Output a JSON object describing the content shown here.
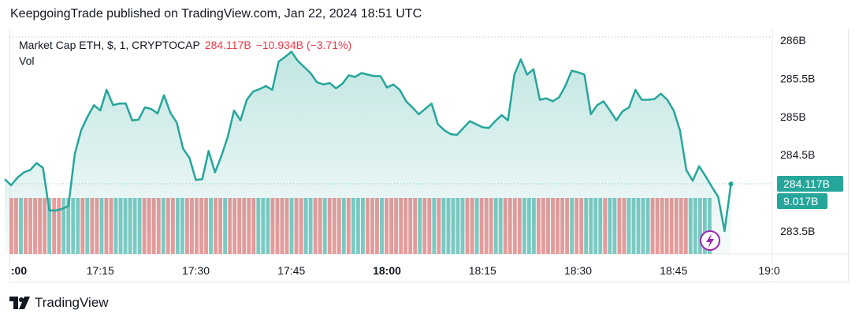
{
  "header": {
    "published_text": "KeepgoingTrade published on TradingView.com, Jan 22, 2024 18:51 UTC"
  },
  "legend": {
    "symbol": "Market Cap ETH, $, 1, CRYPTOCAP",
    "value": "284.117B",
    "change": "−10.934B (−3.71%)",
    "vol_label": "Vol"
  },
  "price_label": "284.117B",
  "volume_label": "9.017B",
  "footer": {
    "brand": "TradingView"
  },
  "colors": {
    "line": "#26a69a",
    "up_vol": "#80cbc4",
    "down_vol": "#ef9a9a",
    "price_tag": "#26a69a",
    "down_text": "#f23645"
  },
  "chart_data": {
    "type": "area",
    "title": "Market Cap ETH, $, 1, CRYPTOCAP",
    "x_ticks": [
      ":00",
      "17:15",
      "17:30",
      "17:45",
      "18:00",
      "18:15",
      "18:30",
      "18:45",
      "19:0"
    ],
    "y_ticks": [
      "286B",
      "285.5B",
      "285B",
      "284.5B",
      "283.5B"
    ],
    "ylim": [
      283.5,
      286.0
    ],
    "x_range": [
      "17:00",
      "19:00"
    ],
    "series": [
      {
        "values": [
          [
            "17:00",
            284.18
          ],
          [
            "17:01",
            284.1
          ],
          [
            "17:02",
            284.2
          ],
          [
            "17:03",
            284.27
          ],
          [
            "17:04",
            284.3
          ],
          [
            "17:05",
            284.39
          ],
          [
            "17:06",
            284.33
          ],
          [
            "17:07",
            283.77
          ],
          [
            "17:08",
            283.77
          ],
          [
            "17:09",
            283.79
          ],
          [
            "17:10",
            283.83
          ],
          [
            "17:11",
            284.51
          ],
          [
            "17:12",
            284.82
          ],
          [
            "17:13",
            285.0
          ],
          [
            "17:14",
            285.15
          ],
          [
            "17:15",
            285.08
          ],
          [
            "17:16",
            285.35
          ],
          [
            "17:17",
            285.15
          ],
          [
            "17:18",
            285.17
          ],
          [
            "17:19",
            285.17
          ],
          [
            "17:20",
            284.95
          ],
          [
            "17:21",
            284.96
          ],
          [
            "17:22",
            285.12
          ],
          [
            "17:23",
            285.1
          ],
          [
            "17:24",
            285.04
          ],
          [
            "17:25",
            285.28
          ],
          [
            "17:26",
            285.05
          ],
          [
            "17:27",
            284.92
          ],
          [
            "17:28",
            284.58
          ],
          [
            "17:29",
            284.46
          ],
          [
            "17:30",
            284.17
          ],
          [
            "17:31",
            284.18
          ],
          [
            "17:32",
            284.55
          ],
          [
            "17:33",
            284.27
          ],
          [
            "17:34",
            284.48
          ],
          [
            "17:35",
            284.73
          ],
          [
            "17:36",
            285.08
          ],
          [
            "17:37",
            284.95
          ],
          [
            "17:38",
            285.22
          ],
          [
            "17:39",
            285.33
          ],
          [
            "17:40",
            285.36
          ],
          [
            "17:41",
            285.4
          ],
          [
            "17:42",
            285.35
          ],
          [
            "17:43",
            285.72
          ],
          [
            "17:44",
            285.78
          ],
          [
            "17:45",
            285.85
          ],
          [
            "17:46",
            285.73
          ],
          [
            "17:47",
            285.65
          ],
          [
            "17:48",
            285.57
          ],
          [
            "17:49",
            285.45
          ],
          [
            "17:50",
            285.42
          ],
          [
            "17:51",
            285.44
          ],
          [
            "17:52",
            285.37
          ],
          [
            "17:53",
            285.43
          ],
          [
            "17:54",
            285.54
          ],
          [
            "17:55",
            285.52
          ],
          [
            "17:56",
            285.57
          ],
          [
            "17:57",
            285.55
          ],
          [
            "17:58",
            285.53
          ],
          [
            "17:59",
            285.53
          ],
          [
            "18:00",
            285.38
          ],
          [
            "18:01",
            285.42
          ],
          [
            "18:02",
            285.35
          ],
          [
            "18:03",
            285.2
          ],
          [
            "18:04",
            285.12
          ],
          [
            "18:05",
            285.03
          ],
          [
            "18:06",
            285.1
          ],
          [
            "18:07",
            285.17
          ],
          [
            "18:08",
            284.9
          ],
          [
            "18:09",
            284.82
          ],
          [
            "18:10",
            284.77
          ],
          [
            "18:11",
            284.76
          ],
          [
            "18:12",
            284.85
          ],
          [
            "18:13",
            284.94
          ],
          [
            "18:14",
            284.9
          ],
          [
            "18:15",
            284.86
          ],
          [
            "18:16",
            284.85
          ],
          [
            "18:17",
            284.94
          ],
          [
            "18:18",
            285.02
          ],
          [
            "18:19",
            284.95
          ],
          [
            "18:20",
            285.55
          ],
          [
            "18:21",
            285.75
          ],
          [
            "18:22",
            285.55
          ],
          [
            "18:23",
            285.62
          ],
          [
            "18:24",
            285.22
          ],
          [
            "18:25",
            285.24
          ],
          [
            "18:26",
            285.2
          ],
          [
            "18:27",
            285.25
          ],
          [
            "18:28",
            285.4
          ],
          [
            "18:29",
            285.6
          ],
          [
            "18:30",
            285.58
          ],
          [
            "18:31",
            285.55
          ],
          [
            "18:32",
            285.03
          ],
          [
            "18:33",
            285.15
          ],
          [
            "18:34",
            285.2
          ],
          [
            "18:35",
            285.08
          ],
          [
            "18:36",
            284.95
          ],
          [
            "18:37",
            285.07
          ],
          [
            "18:38",
            285.12
          ],
          [
            "18:39",
            285.35
          ],
          [
            "18:40",
            285.22
          ],
          [
            "18:41",
            285.22
          ],
          [
            "18:42",
            285.23
          ],
          [
            "18:43",
            285.3
          ],
          [
            "18:44",
            285.22
          ],
          [
            "18:45",
            285.08
          ],
          [
            "18:46",
            284.82
          ],
          [
            "18:47",
            284.3
          ],
          [
            "18:48",
            284.16
          ],
          [
            "18:49",
            284.35
          ],
          [
            "18:50",
            284.22
          ],
          [
            "18:51",
            284.08
          ],
          [
            "18:52",
            283.95
          ],
          [
            "18:53",
            283.5
          ],
          [
            "18:54",
            284.117
          ]
        ]
      }
    ],
    "volume": {
      "name": "Vol",
      "last_value": "9.017B",
      "directions": "ddudddddudduuuududdudduuuuuuddddudduuddddduddudddddduuuddddudduudduddduduuudddudddddddudduduuuuudduddduudddduuudddddddudduuuuduudduuuuudddddddduuuuu"
    }
  }
}
